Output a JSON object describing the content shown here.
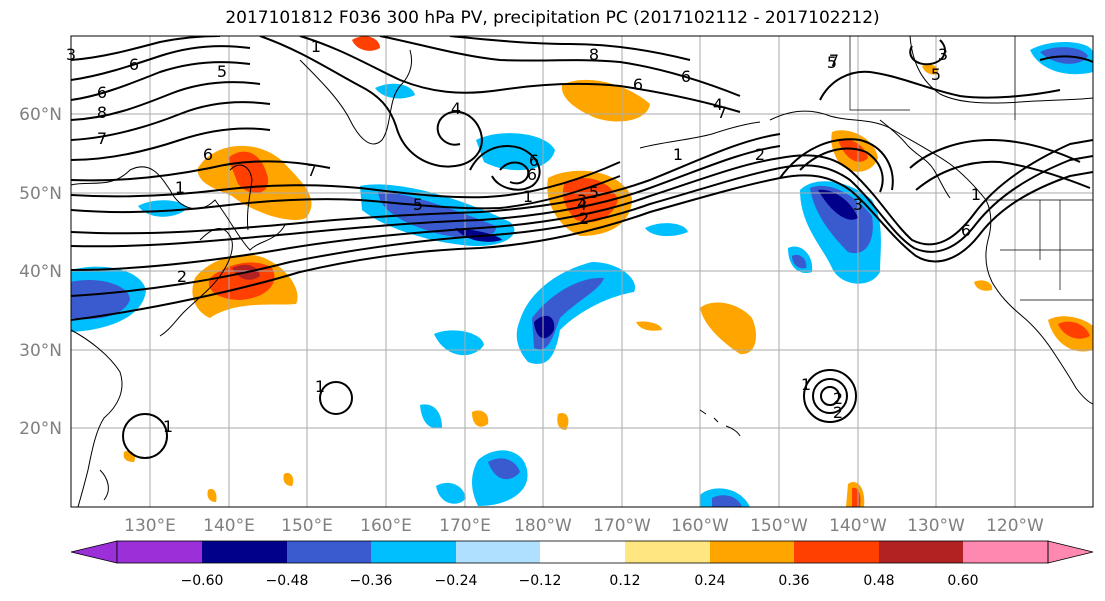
{
  "title": "2017101812 F036 300 hPa PV, precipitation PC (2017102112 - 2017102212)",
  "map": {
    "lon_labels": [
      "130°E",
      "140°E",
      "150°E",
      "160°E",
      "170°E",
      "180°W",
      "170°W",
      "160°W",
      "150°W",
      "140°W",
      "130°W",
      "120°W"
    ],
    "lat_labels": [
      "60°N",
      "50°N",
      "40°N",
      "30°N",
      "20°N"
    ],
    "contour_labels": [
      "3",
      "6",
      "5",
      "6",
      "8",
      "7",
      "1",
      "5",
      "6",
      "4",
      "8",
      "6",
      "6",
      "7",
      "6",
      "3",
      "5",
      "4",
      "1",
      "2",
      "6",
      "7",
      "1",
      "5",
      "4",
      "3",
      "2",
      "2",
      "5",
      "6",
      "3",
      "7",
      "1",
      "2",
      "1",
      "1",
      "1",
      "2",
      "1"
    ]
  },
  "colorbar": {
    "tick_labels": [
      "−0.60",
      "−0.48",
      "−0.36",
      "−0.24",
      "−0.12",
      "0.12",
      "0.24",
      "0.36",
      "0.48",
      "0.60"
    ],
    "colors": [
      "#9b30d9",
      "#00008b",
      "#3a5bd0",
      "#00bfff",
      "#b0e0ff",
      "#ffffff",
      "#ffe680",
      "#ffa500",
      "#ff4000",
      "#b22222",
      "#ff88b0"
    ]
  },
  "fill_colors": {
    "neg_strong": "#00008b",
    "neg_mid": "#3a5bd0",
    "neg": "#00bfff",
    "neg_light": "#b0e0ff",
    "pos_light": "#ffe680",
    "pos": "#ffa500",
    "pos_mid": "#ff4000",
    "pos_strong": "#b22222"
  }
}
